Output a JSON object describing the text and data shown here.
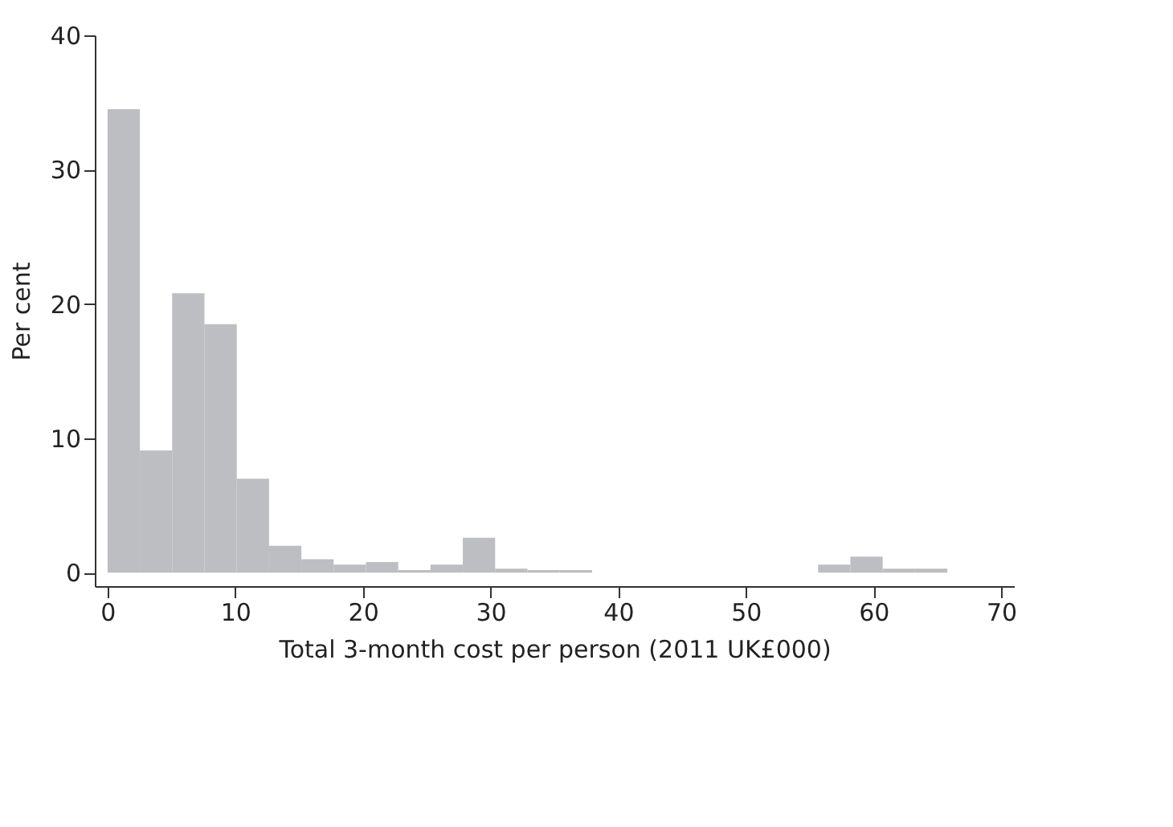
{
  "chart_data": {
    "type": "histogram",
    "xlabel": "Total 3-month cost per person (2011 UK£000)",
    "ylabel": "Per cent",
    "bins": [
      0,
      2.53,
      5.06,
      7.59,
      10.12,
      12.65,
      15.18,
      17.71,
      20.24,
      22.77,
      25.3,
      27.83,
      30.36,
      32.89,
      35.42,
      37.95,
      40.48,
      43.01,
      45.54,
      48.07,
      50.6,
      53.13,
      55.66,
      58.19,
      60.72,
      63.25,
      65.78
    ],
    "values": [
      34.5,
      9.1,
      20.8,
      18.5,
      7.0,
      2.0,
      1.0,
      0.6,
      0.8,
      0.2,
      0.6,
      2.6,
      0.3,
      0.2,
      0.2,
      0,
      0,
      0,
      0,
      0,
      0,
      0,
      0.6,
      1.2,
      0.3,
      0.3
    ],
    "color": "#bdbec2",
    "xlim": [
      -1,
      71
    ],
    "xticks": [
      0,
      10,
      20,
      30,
      40,
      50,
      60,
      70
    ],
    "ylim": [
      -1,
      40
    ],
    "yticks": [
      0,
      10,
      20,
      30,
      40
    ],
    "grid": false
  }
}
